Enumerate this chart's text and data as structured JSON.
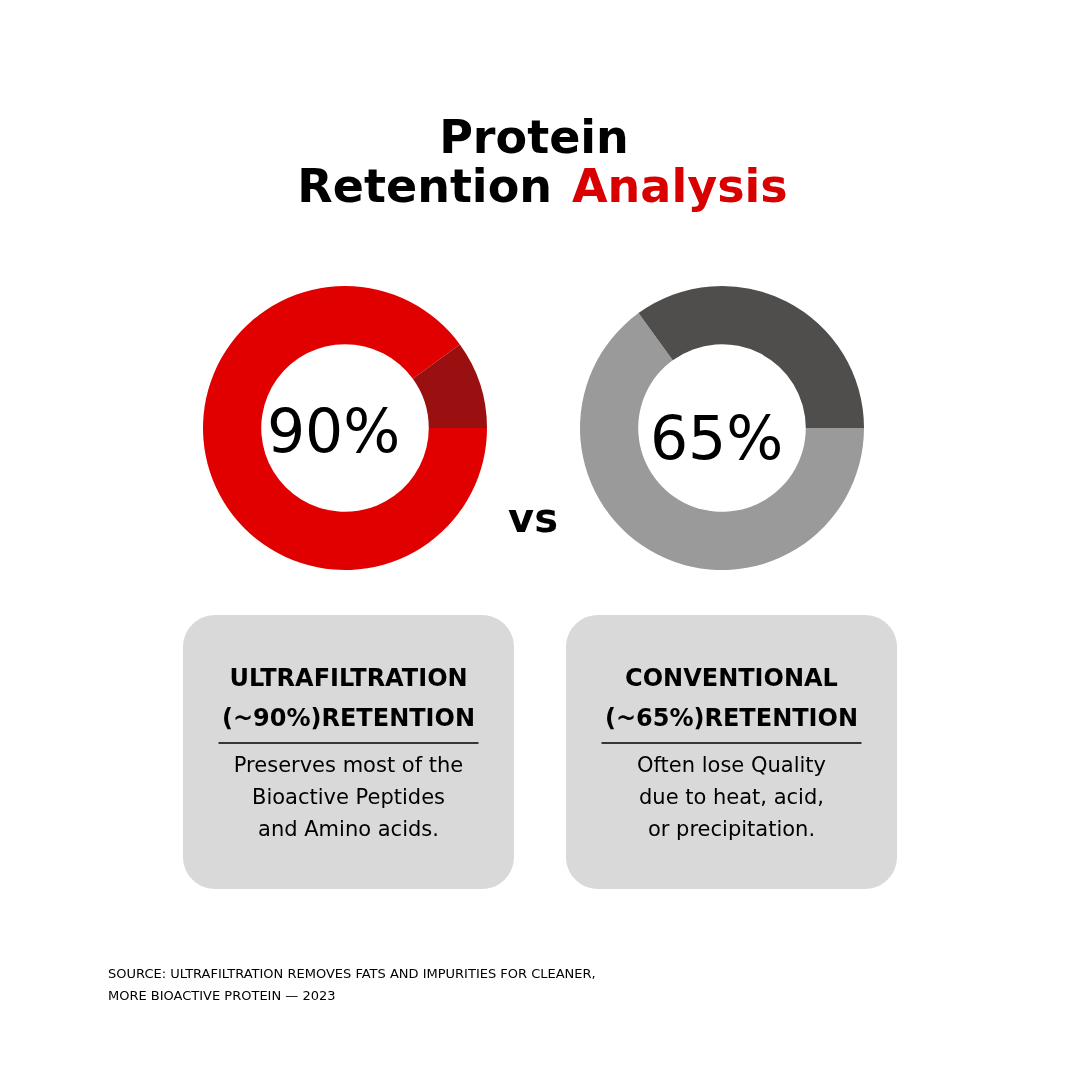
{
  "chart_data": [
    {
      "type": "donut",
      "title": "Protein Retention Analysis",
      "categories": [
        null,
        null
      ],
      "values": [
        90,
        10
      ],
      "colors": [
        "#e00000",
        "#9a1010"
      ],
      "value_labels": [
        "90%",
        null
      ],
      "annotations": [
        "ULTRAFILTRATION\n(~90%)RETENTION",
        "Preserves most of the\nBioactive Peptides\nand Amino acids.",
        "vs",
        "SOURCE: ULTRAFILTRATION REMOVES FATS AND IMPURITIES FOR CLEANER,\nMORE BIOACTIVE PROTEIN — 2023"
      ]
    },
    {
      "type": "donut",
      "categories": [
        null,
        null
      ],
      "values": [
        65,
        35
      ],
      "colors": [
        "#9a9a9a",
        "#4f4e4c"
      ],
      "value_labels": [
        "65%",
        null
      ],
      "annotations": [
        "CONVENTIONAL\n(~65%)RETENTION",
        "Often lose Quality\ndue to heat, acid,\nor precipitation."
      ]
    }
  ]
}
